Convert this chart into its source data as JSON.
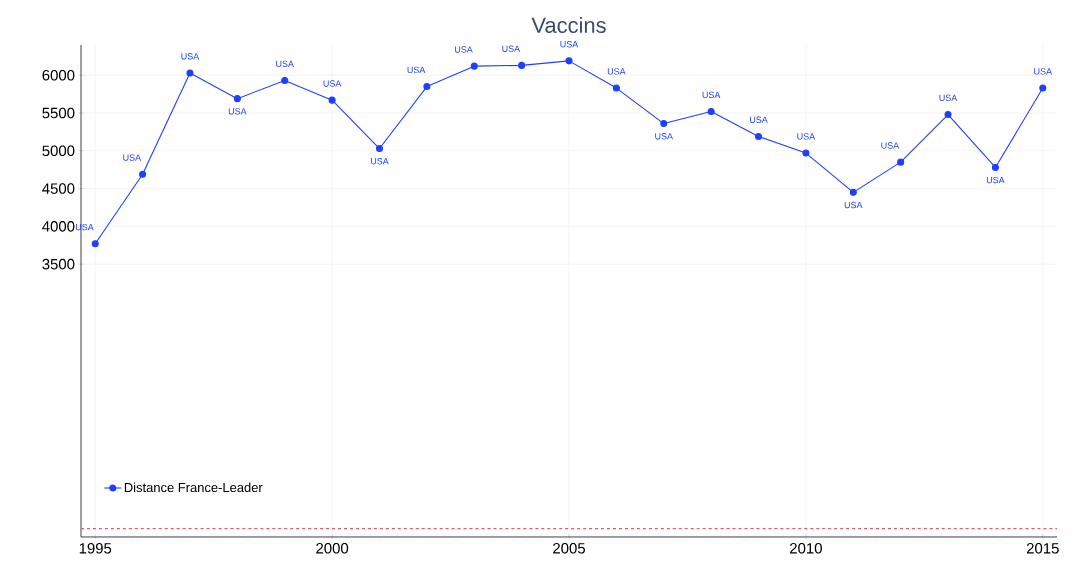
{
  "chart_data": {
    "type": "line",
    "title": "Vaccins",
    "x": [
      1995,
      1996,
      1997,
      1998,
      1999,
      2000,
      2001,
      2002,
      2003,
      2004,
      2005,
      2006,
      2007,
      2008,
      2009,
      2010,
      2011,
      2012,
      2013,
      2014,
      2015
    ],
    "series": [
      {
        "name": "Distance France-Leader",
        "color": "#1f3fff",
        "marker": "circle",
        "line_style": "solid",
        "values": [
          3770,
          4690,
          6030,
          5690,
          5930,
          5670,
          5030,
          5850,
          6120,
          6130,
          6190,
          5830,
          5360,
          5520,
          5190,
          4970,
          4450,
          4850,
          5480,
          4780,
          5830
        ],
        "value_labels": [
          "USA",
          "USA",
          "USA",
          "USA",
          "USA",
          "USA",
          "USA",
          "USA",
          "USA",
          "USA",
          "USA",
          "USA",
          "USA",
          "USA",
          "USA",
          "USA",
          "USA",
          "USA",
          "USA",
          "USA",
          "USA"
        ]
      }
    ],
    "xlim": [
      1994.7,
      2015.3
    ],
    "ylim": [
      -110,
      6400
    ],
    "xticks": [
      1995,
      2000,
      2005,
      2010,
      2015
    ],
    "yticks": [
      3500,
      4000,
      4500,
      5000,
      5500,
      6000
    ],
    "ref_lines": [
      {
        "axis": "y",
        "value": 0,
        "color": "#d9606e",
        "line_style": "dashed"
      }
    ],
    "grid": true,
    "legend": "bottom left"
  }
}
